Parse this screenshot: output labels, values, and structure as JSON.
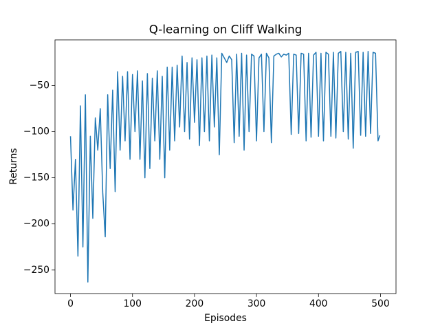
{
  "chart_data": {
    "type": "line",
    "title": "Q-learning on Cliff Walking",
    "xlabel": "Episodes",
    "ylabel": "Returns",
    "x": [
      0,
      4,
      8,
      12,
      16,
      20,
      24,
      28,
      32,
      36,
      40,
      44,
      48,
      52,
      56,
      60,
      64,
      68,
      72,
      76,
      80,
      84,
      88,
      92,
      96,
      100,
      104,
      108,
      112,
      116,
      120,
      124,
      128,
      132,
      136,
      140,
      144,
      148,
      152,
      156,
      160,
      164,
      168,
      172,
      176,
      180,
      184,
      188,
      192,
      196,
      200,
      204,
      208,
      212,
      216,
      220,
      224,
      228,
      232,
      236,
      240,
      244,
      248,
      252,
      256,
      260,
      264,
      268,
      272,
      276,
      280,
      284,
      288,
      292,
      296,
      300,
      304,
      308,
      312,
      316,
      320,
      324,
      328,
      332,
      336,
      340,
      344,
      348,
      352,
      356,
      360,
      364,
      368,
      372,
      376,
      380,
      384,
      388,
      392,
      396,
      400,
      404,
      408,
      412,
      416,
      420,
      424,
      428,
      432,
      436,
      440,
      444,
      448,
      452,
      456,
      460,
      464,
      468,
      472,
      476,
      480,
      484,
      488,
      492,
      496,
      499
    ],
    "series": [
      {
        "name": "Returns",
        "color": "#1f77b4",
        "values": [
          -105,
          -185,
          -130,
          -235,
          -72,
          -225,
          -60,
          -263,
          -105,
          -194,
          -85,
          -120,
          -75,
          -166,
          -214,
          -60,
          -140,
          -55,
          -165,
          -35,
          -120,
          -40,
          -110,
          -35,
          -130,
          -38,
          -100,
          -34,
          -130,
          -45,
          -150,
          -37,
          -140,
          -42,
          -110,
          -34,
          -130,
          -40,
          -150,
          -30,
          -120,
          -30,
          -110,
          -28,
          -95,
          -18,
          -100,
          -25,
          -108,
          -20,
          -90,
          -22,
          -115,
          -20,
          -100,
          -18,
          -110,
          -17,
          -95,
          -20,
          -125,
          -15,
          -20,
          -25,
          -18,
          -22,
          -112,
          -16,
          -105,
          -15,
          -120,
          -17,
          -100,
          -16,
          -18,
          -110,
          -20,
          -16,
          -100,
          -15,
          -20,
          -112,
          -18,
          -16,
          -15,
          -19,
          -16,
          -17,
          -15,
          -103,
          -16,
          -17,
          -102,
          -15,
          -16,
          -110,
          -15,
          -106,
          -17,
          -14,
          -105,
          -15,
          -110,
          -14,
          -16,
          -105,
          -14,
          -107,
          -15,
          -13,
          -100,
          -14,
          -108,
          -15,
          -118,
          -14,
          -13,
          -104,
          -14,
          -105,
          -13,
          -102,
          -14,
          -15,
          -110,
          -104
        ]
      }
    ],
    "xlim": [
      -25,
      525
    ],
    "ylim": [
      -275.5,
      -0.5
    ],
    "xticks": [
      0,
      100,
      200,
      300,
      400,
      500
    ],
    "yticks": [
      {
        "value": -250,
        "label": "−250"
      },
      {
        "value": -200,
        "label": "−200"
      },
      {
        "value": -150,
        "label": "−150"
      },
      {
        "value": -100,
        "label": "−100"
      },
      {
        "value": -50,
        "label": "−50"
      }
    ]
  }
}
